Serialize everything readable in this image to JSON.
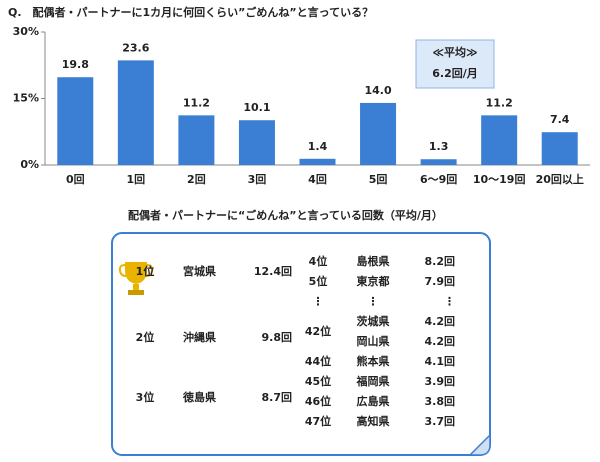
{
  "chart_data": {
    "type": "bar",
    "title": "Q.　配偶者・パートナーに1カ月に何回くらい”ごめんね”と言っている？",
    "categories": [
      "0回",
      "1回",
      "2回",
      "3回",
      "4回",
      "5回",
      "6～9回",
      "10～19回",
      "20回以上"
    ],
    "values": [
      19.8,
      23.6,
      11.2,
      10.1,
      1.4,
      14.0,
      1.3,
      11.2,
      7.4
    ],
    "value_labels": [
      "19.8",
      "23.6",
      "11.2",
      "10.1",
      "1.4",
      "14.0",
      "1.3",
      "11.2",
      "7.4"
    ],
    "color": "#3b7fd4",
    "ylim": [
      0,
      30
    ],
    "yticks": [
      {
        "value": 0,
        "label": "0%"
      },
      {
        "value": 15,
        "label": "15%"
      },
      {
        "value": 30,
        "label": "30%"
      }
    ],
    "annotation": [
      "≪平均≫",
      "6.2回/月"
    ]
  },
  "ranking": {
    "title": "配偶者・パートナーに“ごめんね”と言っている回数（平均/月）",
    "top": [
      {
        "rank": "1位",
        "prefecture": "宮城県",
        "value": "12.4回"
      },
      {
        "rank": "2位",
        "prefecture": "沖縄県",
        "value": "9.8回"
      },
      {
        "rank": "3位",
        "prefecture": "徳島県",
        "value": "8.7回"
      }
    ],
    "rows": [
      {
        "rank": "4位",
        "prefecture": "島根県",
        "value": "8.2回"
      },
      {
        "rank": "5位",
        "prefecture": "東京都",
        "value": "7.9回"
      },
      {
        "rank": "⋮",
        "prefecture": "⋮",
        "value": "⋮"
      },
      {
        "rank": "42位",
        "prefecture": "茨城県",
        "value": "4.2回"
      },
      {
        "prefecture": "岡山県",
        "value": "4.2回"
      },
      {
        "rank": "44位",
        "prefecture": "熊本県",
        "value": "4.1回"
      },
      {
        "rank": "45位",
        "prefecture": "福岡県",
        "value": "3.9回"
      },
      {
        "rank": "46位",
        "prefecture": "広島県",
        "value": "3.8回"
      },
      {
        "rank": "47位",
        "prefecture": "高知県",
        "value": "3.7回"
      }
    ]
  }
}
